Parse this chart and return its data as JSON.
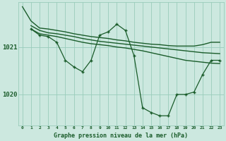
{
  "bg_color": "#cce8df",
  "line_color": "#1a5c2a",
  "grid_color": "#99ccbb",
  "title": "Graphe pression niveau de la mer (hPa)",
  "xlim": [
    -0.5,
    23.5
  ],
  "ylim": [
    1019.35,
    1021.95
  ],
  "yticks": [
    1020,
    1021
  ],
  "xticks": [
    0,
    1,
    2,
    3,
    4,
    5,
    6,
    7,
    8,
    9,
    10,
    11,
    12,
    13,
    14,
    15,
    16,
    17,
    18,
    19,
    20,
    21,
    22,
    23
  ],
  "series": [
    {
      "x": [
        0,
        1,
        2,
        3,
        4,
        5,
        6,
        7,
        8,
        9,
        10,
        11,
        12,
        13,
        14,
        15,
        16,
        17,
        18,
        19,
        20,
        21,
        22,
        23
      ],
      "y": [
        1021.85,
        1021.55,
        1021.4,
        1021.38,
        1021.35,
        1021.32,
        1021.28,
        1021.25,
        1021.22,
        1021.2,
        1021.18,
        1021.15,
        1021.13,
        1021.1,
        1021.08,
        1021.06,
        1021.05,
        1021.03,
        1021.02,
        1021.02,
        1021.02,
        1021.05,
        1021.1,
        1021.1
      ],
      "marker": false,
      "lw": 1.0
    },
    {
      "x": [
        1,
        2,
        3,
        4,
        5,
        6,
        7,
        8,
        9,
        10,
        11,
        12,
        13,
        14,
        15,
        16,
        17,
        18,
        19,
        20,
        21,
        22,
        23
      ],
      "y": [
        1021.45,
        1021.35,
        1021.3,
        1021.28,
        1021.25,
        1021.22,
        1021.18,
        1021.15,
        1021.12,
        1021.1,
        1021.08,
        1021.06,
        1021.04,
        1021.02,
        1021.0,
        1020.98,
        1020.96,
        1020.94,
        1020.92,
        1020.9,
        1020.88,
        1020.87,
        1020.86
      ],
      "marker": false,
      "lw": 1.0
    },
    {
      "x": [
        1,
        2,
        3,
        4,
        5,
        6,
        7,
        8,
        9,
        10,
        11,
        12,
        13,
        14,
        15,
        16,
        17,
        18,
        19,
        20,
        21,
        22,
        23
      ],
      "y": [
        1021.38,
        1021.28,
        1021.25,
        1021.22,
        1021.18,
        1021.14,
        1021.1,
        1021.07,
        1021.05,
        1021.03,
        1021.0,
        1020.98,
        1020.95,
        1020.92,
        1020.88,
        1020.84,
        1020.8,
        1020.76,
        1020.72,
        1020.7,
        1020.68,
        1020.66,
        1020.65
      ],
      "marker": false,
      "lw": 1.0
    },
    {
      "x": [
        1,
        2,
        3,
        4,
        5,
        6,
        7,
        8,
        9,
        10,
        11,
        12,
        13,
        14,
        15,
        16,
        17,
        18,
        19,
        20,
        21,
        22,
        23
      ],
      "y": [
        1021.38,
        1021.25,
        1021.22,
        1021.1,
        1020.72,
        1020.58,
        1020.48,
        1020.72,
        1021.25,
        1021.32,
        1021.48,
        1021.35,
        1020.82,
        1019.72,
        1019.62,
        1019.55,
        1019.55,
        1020.0,
        1020.0,
        1020.05,
        1020.42,
        1020.72,
        1020.72
      ],
      "marker": true,
      "lw": 0.9
    }
  ]
}
